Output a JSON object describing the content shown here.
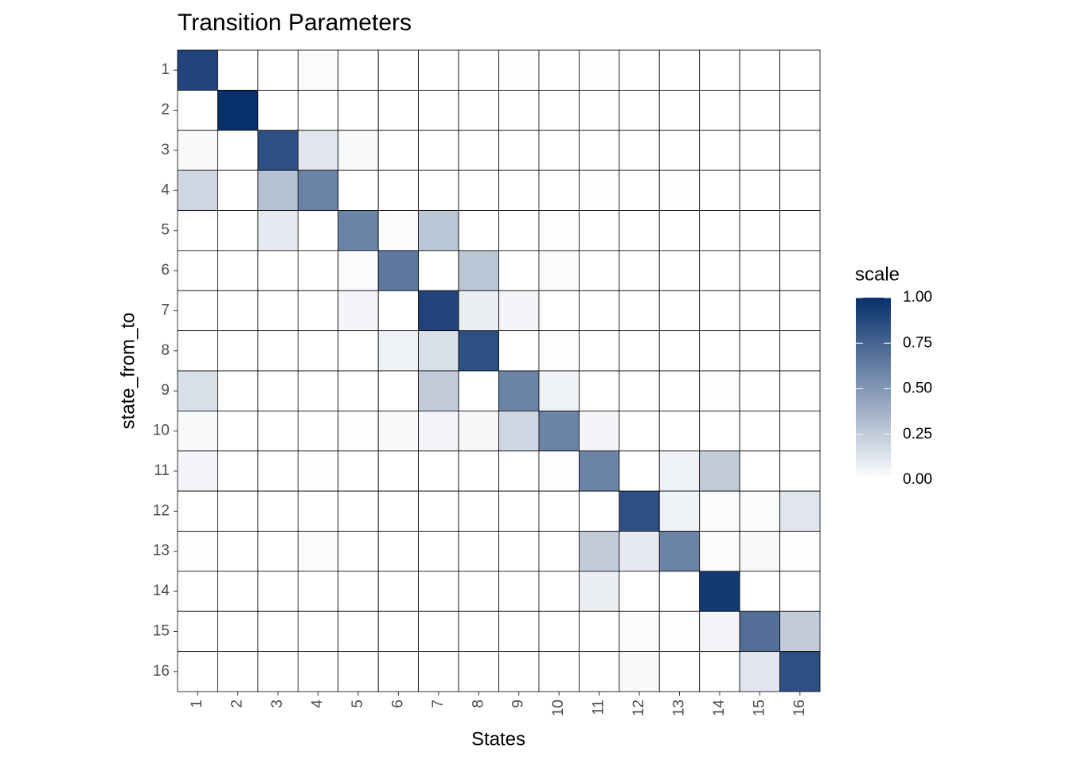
{
  "chart_data": {
    "type": "heatmap",
    "title": "Transition Parameters",
    "x_label": "States",
    "y_label": "state_from_to",
    "x_categories": [
      "1",
      "2",
      "3",
      "4",
      "5",
      "6",
      "7",
      "8",
      "9",
      "10",
      "11",
      "12",
      "13",
      "14",
      "15",
      "16"
    ],
    "y_categories": [
      "1",
      "2",
      "3",
      "4",
      "5",
      "6",
      "7",
      "8",
      "9",
      "10",
      "11",
      "12",
      "13",
      "14",
      "15",
      "16"
    ],
    "values": [
      [
        0.9,
        0,
        0,
        0.02,
        0,
        0,
        0,
        0,
        0.01,
        0,
        0.01,
        0,
        0,
        0,
        0,
        0
      ],
      [
        0,
        1.0,
        0,
        0,
        0,
        0,
        0,
        0,
        0,
        0,
        0,
        0,
        0,
        0,
        0,
        0
      ],
      [
        0.03,
        0,
        0.85,
        0.12,
        0.03,
        0,
        0,
        0,
        0,
        0,
        0,
        0,
        0,
        0,
        0,
        0
      ],
      [
        0.2,
        0,
        0.3,
        0.6,
        0,
        0,
        0,
        0,
        0,
        0,
        0.01,
        0,
        0.01,
        0,
        0,
        0
      ],
      [
        0,
        0,
        0.1,
        0,
        0.6,
        0.02,
        0.28,
        0,
        0,
        0.01,
        0,
        0,
        0,
        0,
        0,
        0
      ],
      [
        0,
        0,
        0,
        0,
        0.02,
        0.65,
        0,
        0.28,
        0,
        0.02,
        0,
        0,
        0,
        0,
        0,
        0
      ],
      [
        0,
        0,
        0,
        0,
        0.05,
        0,
        0.9,
        0.08,
        0.05,
        0,
        0,
        0,
        0,
        0,
        0,
        0
      ],
      [
        0,
        0,
        0,
        0,
        0,
        0.07,
        0.15,
        0.85,
        0,
        0.01,
        0,
        0,
        0,
        0,
        0,
        0
      ],
      [
        0.15,
        0,
        0,
        0,
        0,
        0,
        0.25,
        0,
        0.6,
        0.07,
        0,
        0,
        0,
        0.01,
        0,
        0
      ],
      [
        0.03,
        0,
        0,
        0,
        0.01,
        0.03,
        0.05,
        0.04,
        0.2,
        0.6,
        0.05,
        0,
        0,
        0,
        0,
        0
      ],
      [
        0.05,
        0,
        0,
        0.01,
        0,
        0,
        0,
        0,
        0,
        0.01,
        0.6,
        0,
        0.07,
        0.25,
        0,
        0
      ],
      [
        0,
        0,
        0,
        0,
        0,
        0,
        0,
        0,
        0,
        0,
        0,
        0.85,
        0.06,
        0.02,
        0.02,
        0.12
      ],
      [
        0.01,
        0,
        0,
        0.02,
        0,
        0,
        0,
        0,
        0,
        0,
        0.25,
        0.1,
        0.6,
        0.02,
        0.03,
        0.01
      ],
      [
        0,
        0,
        0,
        0,
        0,
        0,
        0,
        0,
        0,
        0,
        0.08,
        0,
        0,
        0.95,
        0,
        0
      ],
      [
        0,
        0,
        0,
        0,
        0,
        0,
        0,
        0,
        0,
        0,
        0,
        0.02,
        0.01,
        0.05,
        0.7,
        0.25
      ],
      [
        0,
        0,
        0,
        0,
        0,
        0,
        0,
        0,
        0,
        0,
        0,
        0.03,
        0,
        0,
        0.12,
        0.85
      ]
    ],
    "color_low": "#ffffff",
    "color_high": "#08306b",
    "legend_title": "scale",
    "colorbar_lim": [
      0,
      1
    ],
    "colorbar_ticks": [
      {
        "value": 0,
        "label": "0.00"
      },
      {
        "value": 0.25,
        "label": "0.25"
      },
      {
        "value": 0.5,
        "label": "0.50"
      },
      {
        "value": 0.75,
        "label": "0.75"
      },
      {
        "value": 1,
        "label": "1.00"
      }
    ]
  }
}
